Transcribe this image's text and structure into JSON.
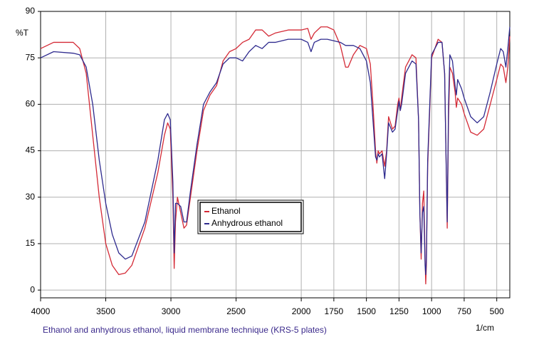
{
  "chart_data": {
    "type": "line",
    "y_label": "%T",
    "x_label": "1/cm",
    "caption": "Ethanol and anhydrous ethanol, liquid membrane technique (KRS-5 plates)",
    "xlim": [
      4000,
      400
    ],
    "ylim": [
      -2.5,
      90
    ],
    "xticks": [
      4000,
      3500,
      3000,
      2500,
      2000,
      1750,
      1500,
      1250,
      1000,
      750,
      500
    ],
    "yticks": [
      0,
      15,
      30,
      45,
      60,
      75,
      90
    ],
    "grid": true,
    "legend_position": "center",
    "x": [
      4000,
      3900,
      3750,
      3700,
      3650,
      3600,
      3550,
      3500,
      3450,
      3400,
      3350,
      3300,
      3200,
      3100,
      3050,
      3025,
      3005,
      2985,
      2975,
      2965,
      2950,
      2925,
      2900,
      2880,
      2850,
      2800,
      2750,
      2700,
      2650,
      2600,
      2550,
      2500,
      2450,
      2400,
      2350,
      2300,
      2250,
      2200,
      2100,
      2000,
      1950,
      1925,
      1900,
      1850,
      1800,
      1750,
      1700,
      1660,
      1640,
      1600,
      1550,
      1500,
      1470,
      1450,
      1430,
      1420,
      1410,
      1400,
      1380,
      1360,
      1345,
      1330,
      1300,
      1280,
      1260,
      1250,
      1240,
      1230,
      1200,
      1150,
      1120,
      1100,
      1090,
      1080,
      1070,
      1060,
      1050,
      1045,
      1040,
      1030,
      1000,
      950,
      920,
      900,
      890,
      880,
      870,
      860,
      840,
      820,
      810,
      800,
      770,
      750,
      700,
      650,
      600,
      550,
      500,
      470,
      450,
      430,
      415,
      400
    ],
    "series": [
      {
        "name": "Ethanol",
        "color": "#d42a36",
        "values": [
          78,
          80,
          80,
          78,
          70,
          50,
          30,
          15,
          8,
          5,
          5.5,
          8,
          20,
          38,
          50,
          54,
          52,
          30,
          7,
          22,
          30,
          25,
          20,
          21,
          30,
          45,
          58,
          63,
          66,
          74,
          77,
          78,
          80,
          81,
          84,
          84,
          82,
          83,
          84,
          84,
          84.5,
          81,
          83,
          85,
          85,
          84,
          79,
          72,
          72,
          76,
          79,
          78,
          73,
          60,
          45,
          41,
          45,
          44,
          45,
          40,
          45,
          56,
          52,
          53,
          60,
          62,
          58,
          62,
          72,
          76,
          75,
          55,
          25,
          10,
          28,
          32,
          10,
          2,
          8,
          40,
          75,
          81,
          80,
          70,
          45,
          20,
          55,
          72,
          70,
          64,
          59,
          62,
          60,
          57,
          51,
          50,
          52,
          60,
          68,
          73,
          72,
          67,
          72,
          82
        ]
      },
      {
        "name": "Anhydrous ethanol",
        "color": "#2e2a8e",
        "values": [
          75,
          77,
          76.5,
          76,
          72,
          60,
          42,
          28,
          18,
          12,
          10,
          11,
          22,
          42,
          55,
          57,
          55,
          35,
          12,
          28,
          28,
          27,
          22,
          22,
          32,
          47,
          60,
          64,
          67,
          73,
          75,
          75,
          74,
          77,
          79,
          78,
          80,
          80,
          81,
          81,
          80,
          77,
          80,
          81,
          81,
          80.5,
          80,
          79,
          79,
          79,
          78,
          74,
          67,
          55,
          43,
          42,
          44,
          43,
          44,
          36,
          44,
          54,
          51,
          52,
          58,
          61,
          58,
          60,
          70,
          74,
          73,
          55,
          25,
          12,
          25,
          27,
          8,
          5,
          10,
          42,
          76,
          80,
          80,
          70,
          45,
          22,
          60,
          76,
          74,
          66,
          63,
          68,
          65,
          62,
          56,
          54,
          56,
          64,
          73,
          78,
          77,
          72,
          78,
          85
        ]
      }
    ]
  }
}
